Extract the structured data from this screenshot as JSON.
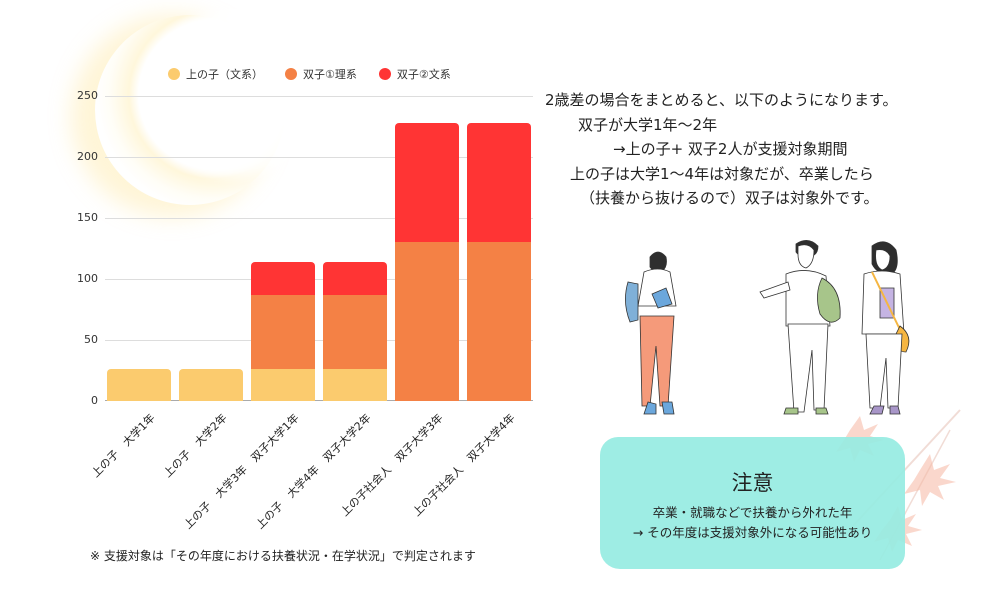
{
  "chart_data": {
    "type": "bar",
    "stacked": true,
    "title": "",
    "xlabel": "",
    "ylabel": "",
    "ylim": [
      0,
      250
    ],
    "yticks": [
      0,
      50,
      100,
      150,
      200,
      250
    ],
    "grid": true,
    "legend_position": "top",
    "categories": [
      "上の子　大学1年",
      "上の子　大学2年",
      "上の子　大学3年　双子大学1年",
      "上の子　大学4年　双子大学2年",
      "上の子社会人　双子大学3年",
      "上の子社会人　双子大学4年"
    ],
    "series": [
      {
        "name": "上の子（文系）",
        "color": "#FBCB6E",
        "values": [
          26,
          26,
          26,
          26,
          0,
          0
        ]
      },
      {
        "name": "双子①理系",
        "color": "#F48145",
        "values": [
          0,
          0,
          61,
          61,
          130,
          130
        ]
      },
      {
        "name": "双子②文系",
        "color": "#FF3434",
        "values": [
          0,
          0,
          27,
          27,
          98,
          98
        ]
      }
    ]
  },
  "legend": [
    {
      "label": "上の子（文系）",
      "color": "#FBCB6E"
    },
    {
      "label": "双子①理系",
      "color": "#F48145"
    },
    {
      "label": "双子②文系",
      "color": "#FF3434"
    }
  ],
  "yticks": [
    "250",
    "200",
    "150",
    "100",
    "50",
    "0"
  ],
  "xlabels": [
    "上の子　大学1年",
    "上の子　大学2年",
    "上の子　大学3年　双子大学1年",
    "上の子　大学4年　双子大学2年",
    "上の子社会人　双子大学3年",
    "上の子社会人　双子大学4年"
  ],
  "footnote": "※ 支援対象は「その年度における扶養状況・在学状況」で判定されます",
  "summary": {
    "line1": "2歳差の場合をまとめると、以下のようになります。",
    "line2": "双子が大学1年〜2年",
    "line3": "→上の子+ 双子2人が支援対象期間",
    "line4": "上の子は大学1〜4年は対象だが、卒業したら",
    "line5": "（扶養から抜けるので）双子は対象外です。"
  },
  "note": {
    "title": "注意",
    "line1": "卒業・就職などで扶養から外れた年",
    "line2": "→ その年度は支援対象外になる可能性あり"
  }
}
